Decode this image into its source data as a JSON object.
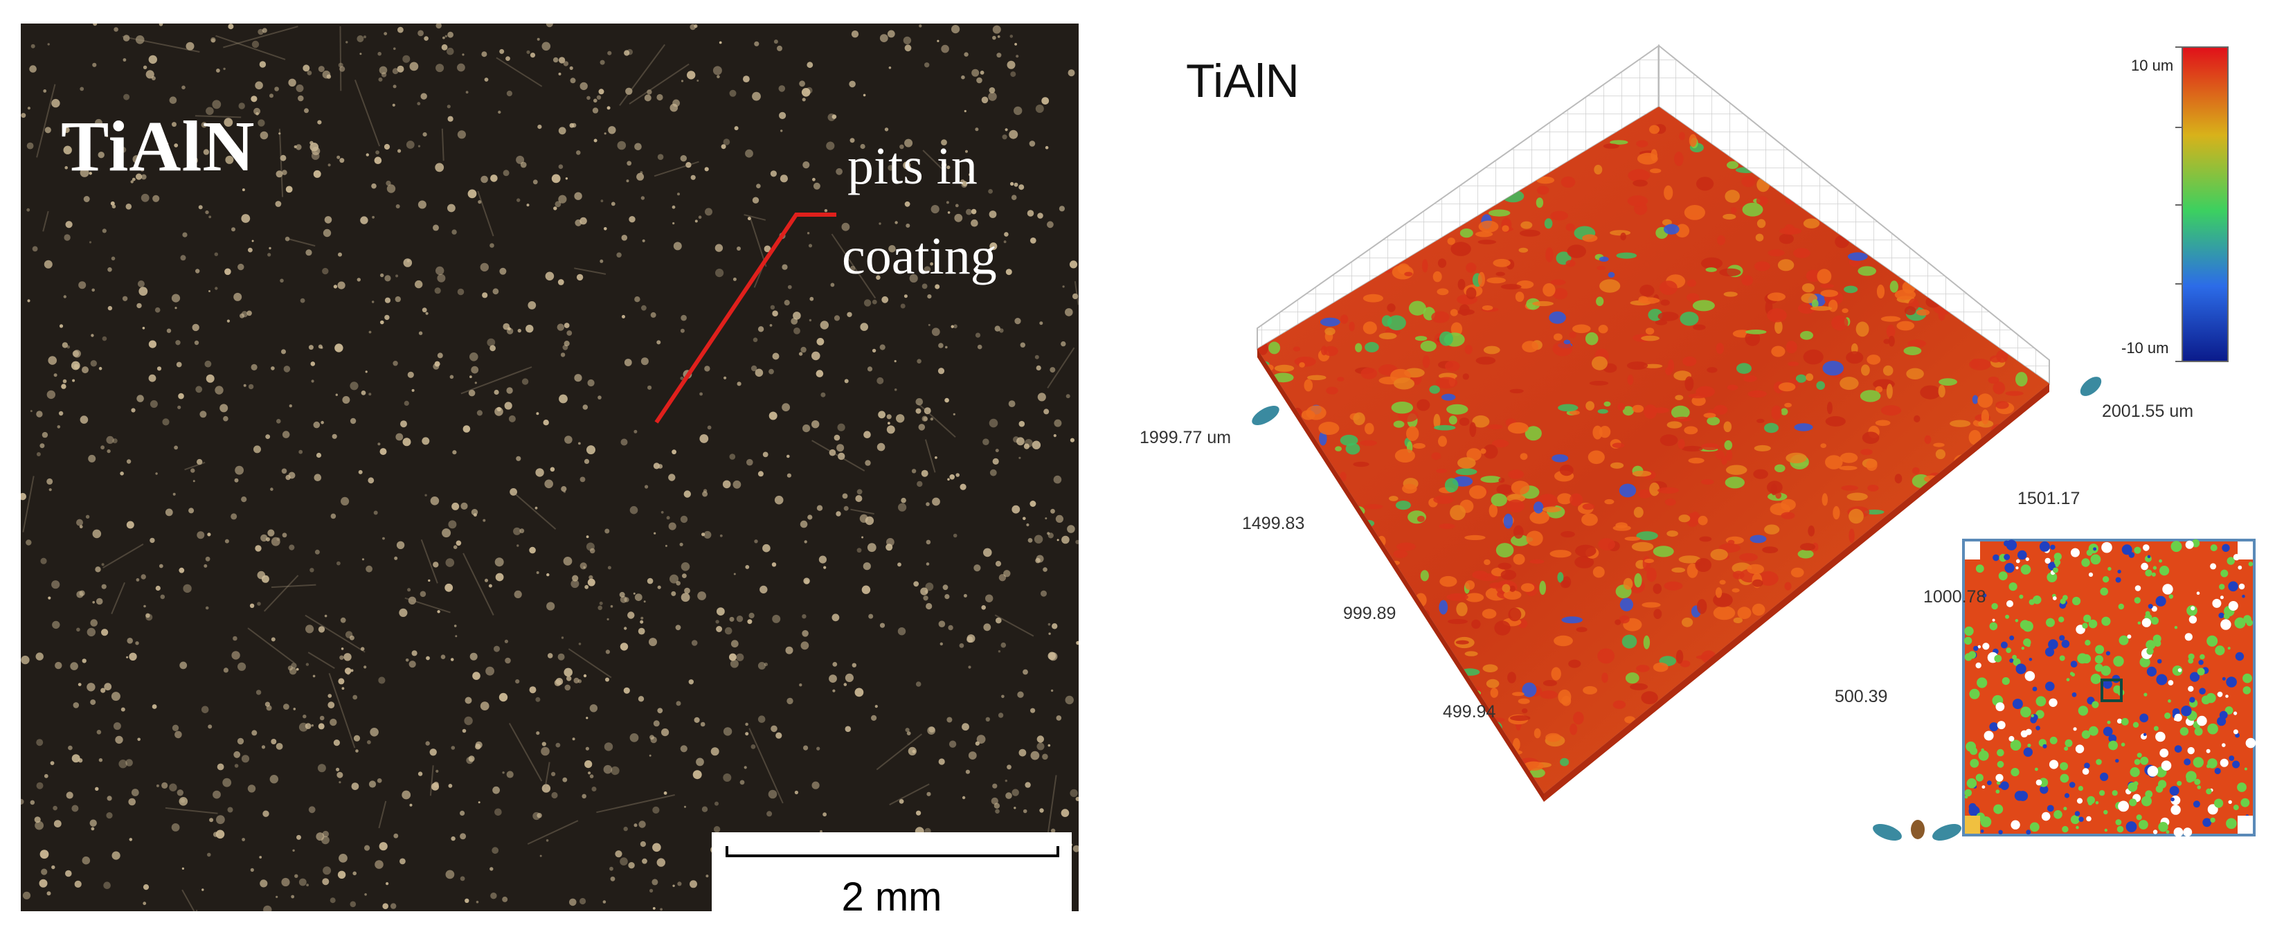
{
  "left_panel": {
    "label": "TiAlN",
    "annotation_line1": "pits in",
    "annotation_line2": "coating",
    "scale_bar": "2 mm",
    "colors": {
      "background": "#221d18",
      "particles": "#cbb89a",
      "pointer": "#e0201c"
    }
  },
  "right_panel": {
    "title": "TiAlN",
    "colorbar": {
      "max_label": "10 um",
      "min_label": "-10 um"
    },
    "axis_left_labels": [
      "1999.77 um",
      "1499.83",
      "999.89",
      "499.94"
    ],
    "axis_right_labels": [
      "2001.55 um",
      "1501.17",
      "1000.78",
      "500.39"
    ],
    "colors": {
      "surface_high": "#d8351c",
      "surface_mid": "#e86a1c",
      "surface_low": "#1a3cd0",
      "grid": "#c8c8c8"
    }
  }
}
